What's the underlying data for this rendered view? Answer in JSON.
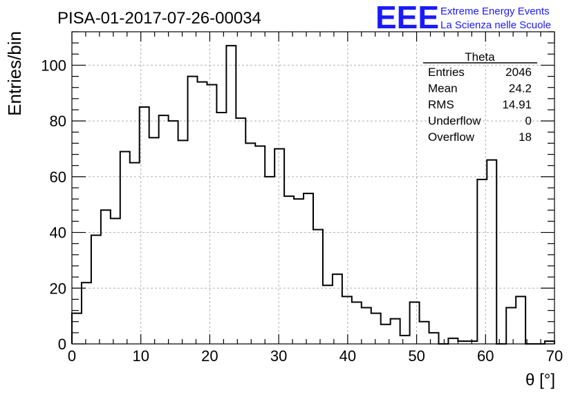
{
  "title": "PISA-01-2017-07-26-00034",
  "logo": {
    "mark": "EEE",
    "line1": "Extreme Energy Events",
    "line2": "La Scienza nelle Scuole",
    "color": "#1a1aff"
  },
  "stats": {
    "name": "Theta",
    "rows": [
      {
        "label": "Entries",
        "value": "2046"
      },
      {
        "label": "Mean",
        "value": "24.2"
      },
      {
        "label": "RMS",
        "value": "14.91"
      },
      {
        "label": "Underflow",
        "value": "0"
      },
      {
        "label": "Overflow",
        "value": "18"
      }
    ]
  },
  "chart_data": {
    "type": "histogram",
    "xlabel": "θ [°]",
    "ylabel": "Entries/bin",
    "xlim": [
      0,
      70
    ],
    "ylim": [
      0,
      112
    ],
    "bin_width": 1.4,
    "x_ticks": [
      0,
      10,
      20,
      30,
      40,
      50,
      60,
      70
    ],
    "y_ticks": [
      0,
      20,
      40,
      60,
      80,
      100
    ],
    "grid": true,
    "values": [
      11,
      22,
      39,
      48,
      45,
      69,
      65,
      85,
      74,
      82,
      80,
      73,
      96,
      94,
      93,
      83,
      107,
      81,
      72,
      71,
      60,
      70,
      53,
      52,
      54,
      41,
      21,
      25,
      17,
      15,
      13,
      11,
      7,
      9,
      3,
      15,
      8,
      4,
      0,
      2,
      1,
      1,
      59,
      66,
      0,
      13,
      17,
      0,
      0,
      1
    ]
  }
}
